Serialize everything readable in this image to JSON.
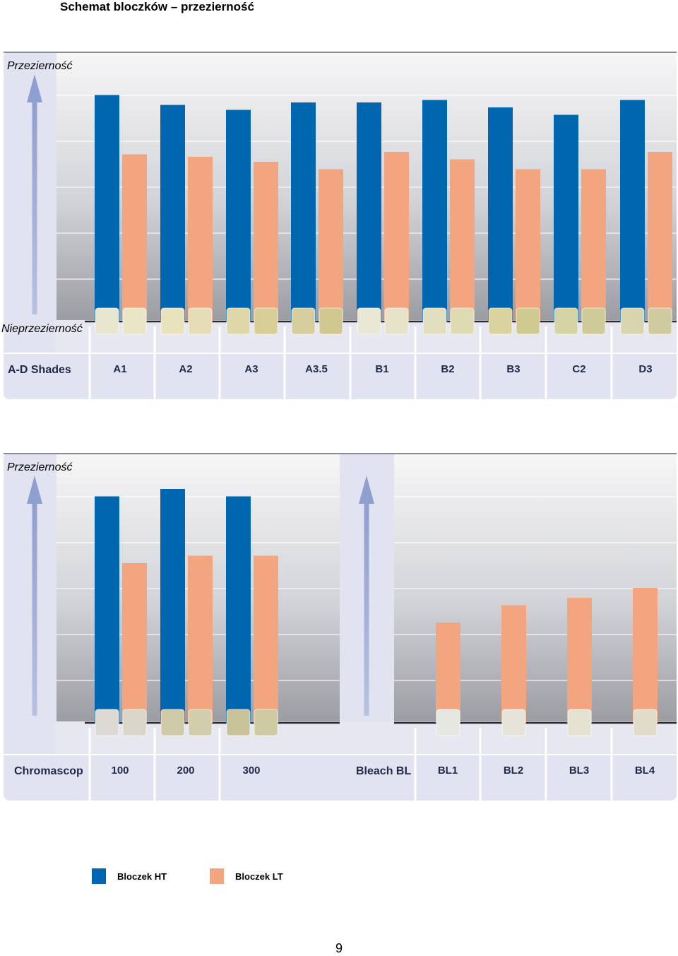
{
  "title": "Schemat bloczków – przezierność",
  "colors": {
    "ht": "#0066B0",
    "lt": "#F2A57E"
  },
  "legend": {
    "ht_label": "Bloczek HT",
    "lt_label": "Bloczek LT"
  },
  "page_number": "9",
  "chart_data": [
    {
      "type": "bar",
      "ylabel_top": "Przezierność",
      "ylabel_bottom": "Nieprzezierność",
      "group_label": "A-D Shades",
      "categories": [
        "A1",
        "A2",
        "A3",
        "A3.5",
        "B1",
        "B2",
        "B3",
        "C2",
        "D3"
      ],
      "ylim": [
        0,
        100
      ],
      "grid": true,
      "series": [
        {
          "key": "ht",
          "values": [
            91,
            87,
            85,
            88,
            88,
            89,
            86,
            83,
            89
          ]
        },
        {
          "key": "lt",
          "values": [
            67,
            66,
            64,
            61,
            68,
            65,
            61,
            61,
            68
          ]
        }
      ],
      "swatch_tints": [
        [
          "#E9E6CF",
          "#EAE5C7"
        ],
        [
          "#E8E2BD",
          "#E5DDB5"
        ],
        [
          "#DED7A8",
          "#D8CE97"
        ],
        [
          "#D7CE9E",
          "#D1C791"
        ],
        [
          "#E9E8D5",
          "#E6E3C9"
        ],
        [
          "#E2DFC0",
          "#DEDBB3"
        ],
        [
          "#D8D39F",
          "#CFCA90"
        ],
        [
          "#D6D3A4",
          "#CECB98"
        ],
        [
          "#D9D5AE",
          "#D0CB9E"
        ]
      ]
    },
    {
      "type": "bar",
      "ylabel_top": "Przezierność",
      "groups": [
        {
          "label": "Chromascop",
          "categories": [
            "100",
            "200",
            "300"
          ],
          "series": [
            {
              "key": "ht",
              "values": [
                91,
                94,
                91
              ]
            },
            {
              "key": "lt",
              "values": [
                64,
                67,
                67
              ]
            }
          ],
          "swatch_tints": [
            [
              "#DCDAD2",
              "#D9D6C8"
            ],
            [
              "#CFCAA8",
              "#D2CDAC"
            ],
            [
              "#C9C39A",
              "#D0CAA3"
            ]
          ]
        },
        {
          "label": "Bleach BL",
          "categories": [
            "BL1",
            "BL2",
            "BL3",
            "BL4"
          ],
          "series": [
            {
              "key": "lt",
              "values": [
                40,
                47,
                50,
                54
              ]
            }
          ],
          "swatch_tints": [
            [
              "#E7E7E2"
            ],
            [
              "#E6E3D8"
            ],
            [
              "#E5E2D2"
            ],
            [
              "#E1DCC9"
            ]
          ]
        }
      ],
      "ylim": [
        0,
        100
      ],
      "grid": true
    }
  ]
}
